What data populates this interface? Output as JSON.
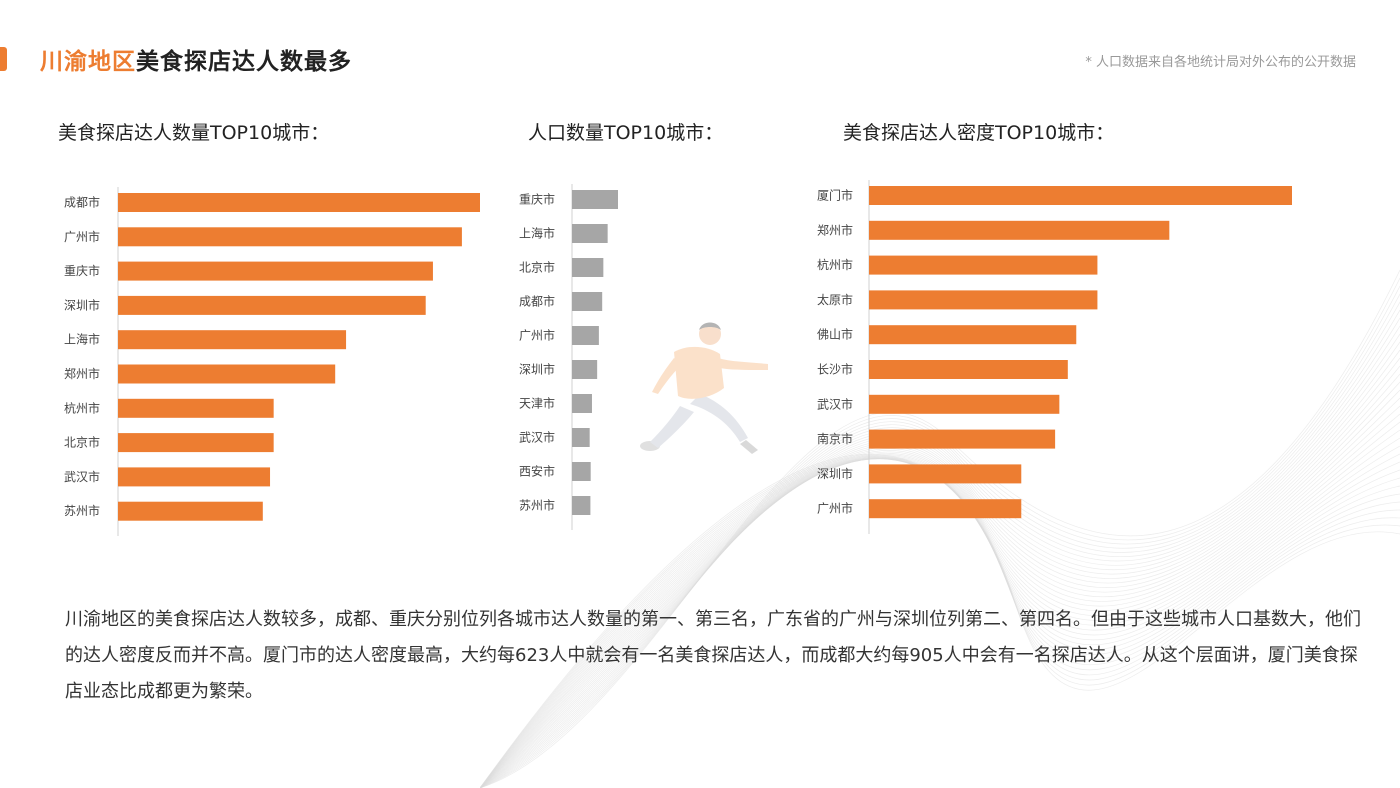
{
  "header": {
    "title_highlight": "川渝地区",
    "title_rest": "美食探店达人数最多",
    "note": "* 人口数据来自各地统计局对外公布的公开数据"
  },
  "colors": {
    "accent": "#ED7D31",
    "gray_bar": "#A6A6A6",
    "text": "#333333"
  },
  "charts": {
    "c1_title": "美食探店达人数量TOP10城市：",
    "c2_title": "人口数量TOP10城市：",
    "c3_title": "美食探店达人密度TOP10城市："
  },
  "chart_data": [
    {
      "type": "bar",
      "orientation": "horizontal",
      "title": "美食探店达人数量TOP10城市：",
      "categories": [
        "成都市",
        "广州市",
        "重庆市",
        "深圳市",
        "上海市",
        "郑州市",
        "杭州市",
        "北京市",
        "武汉市",
        "苏州市"
      ],
      "values": [
        100,
        95,
        87,
        85,
        63,
        60,
        43,
        43,
        42,
        40
      ],
      "color": "#ED7D31"
    },
    {
      "type": "bar",
      "orientation": "horizontal",
      "title": "人口数量TOP10城市：",
      "categories": [
        "重庆市",
        "上海市",
        "北京市",
        "成都市",
        "广州市",
        "深圳市",
        "天津市",
        "武汉市",
        "西安市",
        "苏州市"
      ],
      "values": [
        3200,
        2480,
        2180,
        2100,
        1870,
        1750,
        1390,
        1230,
        1300,
        1280
      ],
      "color": "#A6A6A6"
    },
    {
      "type": "bar",
      "orientation": "horizontal",
      "title": "美食探店达人密度TOP10城市：",
      "categories": [
        "厦门市",
        "郑州市",
        "杭州市",
        "太原市",
        "佛山市",
        "长沙市",
        "武汉市",
        "南京市",
        "深圳市",
        "广州市"
      ],
      "values": [
        100,
        71,
        54,
        54,
        49,
        47,
        45,
        44,
        36,
        36
      ],
      "color": "#ED7D31"
    }
  ],
  "body_text": "川渝地区的美食探店达人数较多，成都、重庆分别位列各城市达人数量的第一、第三名，广东省的广州与深圳位列第二、第四名。但由于这些城市人口基数大，他们的达人密度反而并不高。厦门市的达人密度最高，大约每623人中就会有一名美食探店达人，而成都大约每905人中会有一名探店达人。从这个层面讲，厦门美食探店业态比成都更为繁荣。"
}
